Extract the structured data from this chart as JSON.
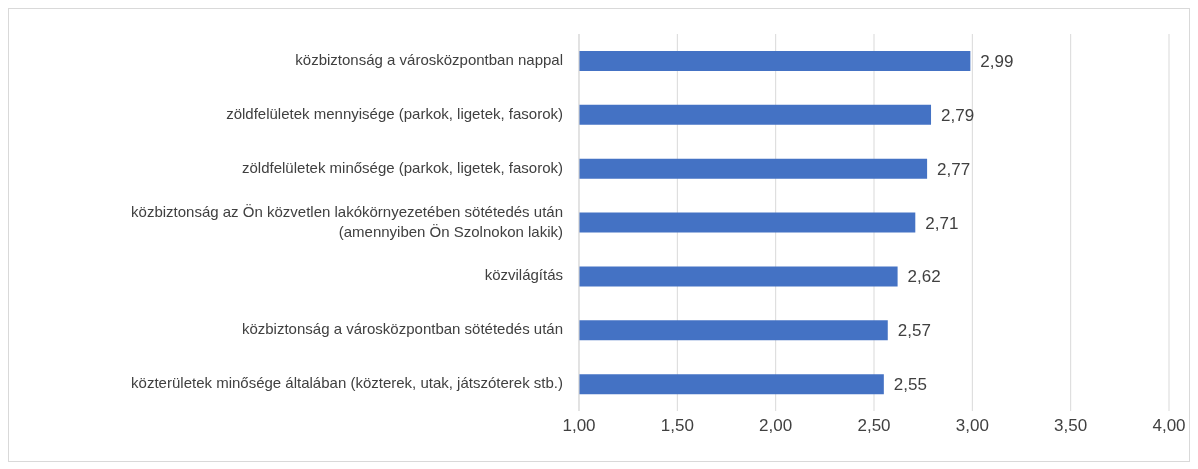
{
  "chart_data": {
    "type": "bar",
    "orientation": "horizontal",
    "categories": [
      "közbiztonság a városközpontban nappal",
      "zöldfelületek mennyisége (parkok, ligetek, fasorok)",
      "zöldfelületek minősége (parkok, ligetek, fasorok)",
      "közbiztonság az Ön közvetlen lakókörnyezetében sötétedés után (amennyiben Ön Szolnokon lakik)",
      "közvilágítás",
      "közbiztonság a városközpontban sötétedés után",
      "közterületek minősége általában (közterek, utak, játszóterek stb.)"
    ],
    "values": [
      2.99,
      2.79,
      2.77,
      2.71,
      2.62,
      2.57,
      2.55
    ],
    "value_labels": [
      "2,99",
      "2,79",
      "2,77",
      "2,71",
      "2,62",
      "2,57",
      "2,55"
    ],
    "color": "#4472c4",
    "xlim": [
      1,
      4
    ],
    "xticks": [
      {
        "value": 1,
        "label": "1,00"
      },
      {
        "value": 1.5,
        "label": "1,50"
      },
      {
        "value": 2,
        "label": "2,00"
      },
      {
        "value": 2.5,
        "label": "2,50"
      },
      {
        "value": 3,
        "label": "3,00"
      },
      {
        "value": 3.5,
        "label": "3,50"
      },
      {
        "value": 4,
        "label": "4,00"
      }
    ],
    "grid": "x",
    "legend": false
  }
}
